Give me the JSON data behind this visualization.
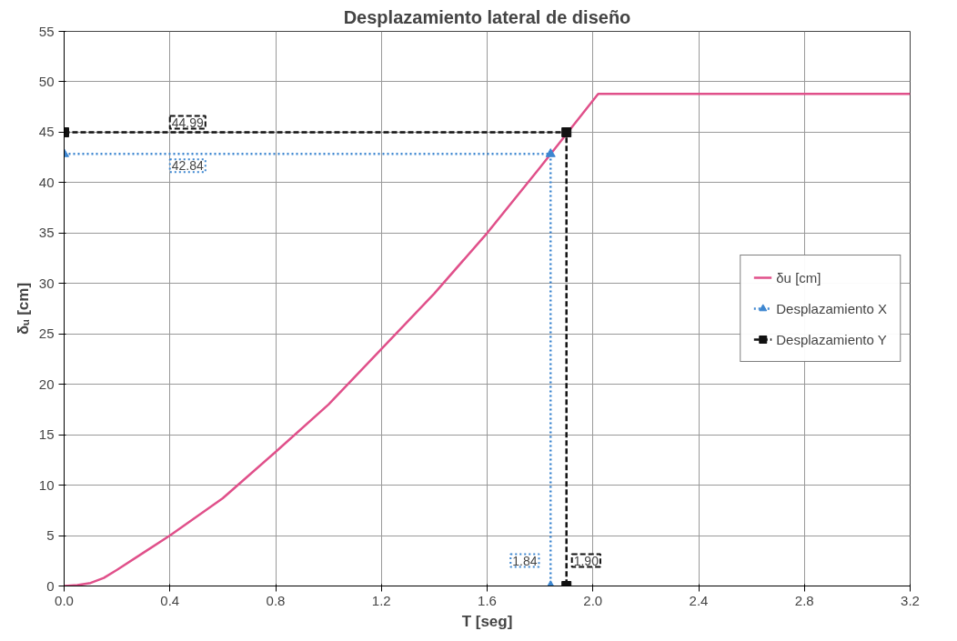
{
  "chart_data": {
    "type": "line",
    "title": "Desplazamiento lateral de diseño",
    "xlabel": "T [seg]",
    "ylabel": "δᵤ [cm]",
    "xlim": [
      0,
      3.2
    ],
    "ylim": [
      0,
      55
    ],
    "xticks": [
      {
        "value": 0,
        "label": "0.0"
      },
      0.4,
      0.8,
      1.2,
      1.6,
      {
        "value": 2,
        "label": "2.0"
      },
      2.4,
      2.8,
      3.2
    ],
    "yticks": [
      0,
      5,
      10,
      15,
      20,
      25,
      30,
      35,
      40,
      45,
      50,
      55
    ],
    "grid": true,
    "legend": "right",
    "series": [
      {
        "name": "δu [cm]",
        "color": "#e0508a",
        "line_style": "solid",
        "marker": "none",
        "x": [
          0,
          0.05,
          0.1,
          0.15,
          0.2,
          0.3,
          0.4,
          0.6,
          0.8,
          1.0,
          1.2,
          1.4,
          1.6,
          1.8,
          2.02,
          3.2
        ],
        "values": [
          0,
          0.1,
          0.3,
          0.8,
          1.6,
          3.3,
          5.0,
          8.7,
          13.3,
          18.0,
          23.5,
          29.0,
          35.0,
          41.5,
          48.8,
          48.8
        ]
      },
      {
        "name": "Desplazamiento X",
        "color": "#3d86d0",
        "line_style": "dotted",
        "marker": "triangle",
        "x": [
          0,
          1.84,
          1.84
        ],
        "values": [
          42.84,
          42.84,
          0
        ]
      },
      {
        "name": "Desplazamiento Y",
        "color": "#111111",
        "line_style": "dashed",
        "marker": "square",
        "x": [
          0,
          1.9,
          1.9
        ],
        "values": [
          44.99,
          44.99,
          0
        ]
      }
    ],
    "annotations": [
      {
        "text": "44.99",
        "x": 0.4,
        "y": 44.99
      },
      {
        "text": "42.84",
        "x": 0.4,
        "y": 42.84
      },
      {
        "text": "1.84",
        "x": 1.84,
        "y": 0
      },
      {
        "text": "1.90",
        "x": 1.9,
        "y": 0
      }
    ]
  }
}
